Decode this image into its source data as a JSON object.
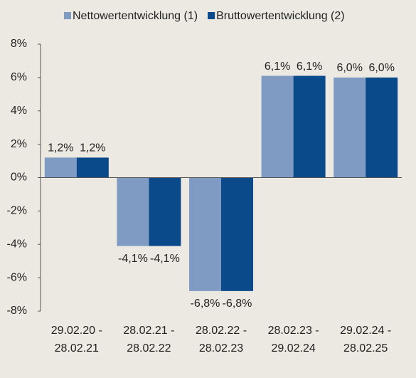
{
  "chart_data": {
    "type": "bar",
    "categories": [
      "29.02.20 -\n28.02.21",
      "28.02.21 -\n28.02.22",
      "28.02.22 -\n28.02.23",
      "28.02.23 -\n29.02.24",
      "29.02.24 -\n28.02.25"
    ],
    "series": [
      {
        "name": "Nettowertentwicklung (1)",
        "color": "#7f9bc4",
        "values": [
          1.2,
          -4.1,
          -6.8,
          6.1,
          6.0
        ],
        "value_labels": [
          "1,2%",
          "-4,1%",
          "-6,8%",
          "6,1%",
          "6,0%"
        ]
      },
      {
        "name": "Bruttowertentwicklung (2)",
        "color": "#0a4a8a",
        "values": [
          1.2,
          -4.1,
          -6.8,
          6.1,
          6.0
        ],
        "value_labels": [
          "1,2%",
          "-4,1%",
          "-6,8%",
          "6,1%",
          "6,0%"
        ]
      }
    ],
    "ylim": [
      -8,
      8
    ],
    "yticks": [
      {
        "value": -8,
        "label": "-8%"
      },
      {
        "value": -6,
        "label": "-6%"
      },
      {
        "value": -4,
        "label": "-4%"
      },
      {
        "value": -2,
        "label": "-2%"
      },
      {
        "value": 0,
        "label": "0%"
      },
      {
        "value": 2,
        "label": "2%"
      },
      {
        "value": 4,
        "label": "4%"
      },
      {
        "value": 6,
        "label": "6%"
      },
      {
        "value": 8,
        "label": "8%"
      }
    ],
    "legend": "top"
  }
}
